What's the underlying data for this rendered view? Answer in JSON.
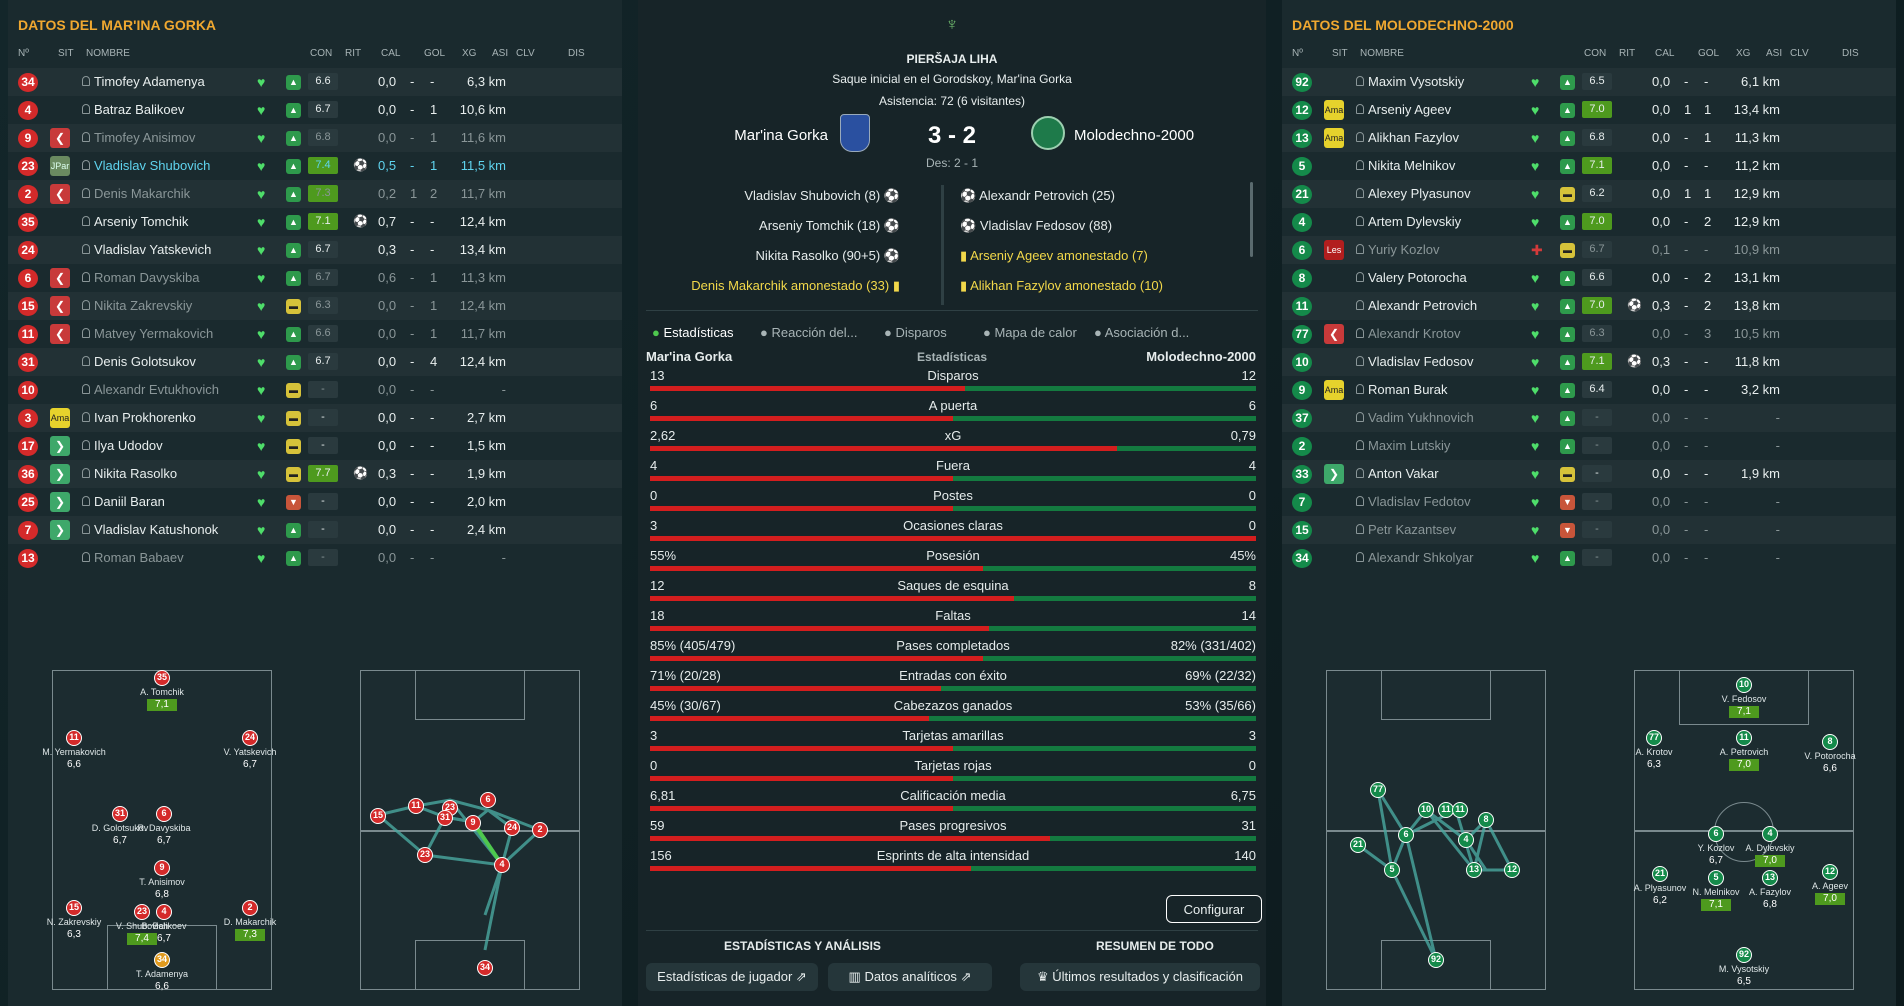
{
  "left": {
    "title": "DATOS DEL MAR'INA GORKA",
    "headers": {
      "num": "Nº",
      "sit": "SIT",
      "name": "NOMBRE",
      "con": "CON",
      "rit": "RIT",
      "cal": "CAL",
      "gol": "GOL",
      "xg": "XG",
      "asi": "ASI",
      "clv": "CLV",
      "dis": "DIS"
    },
    "players": [
      {
        "n": "34",
        "sit": "",
        "name": "Timofey Adamenya",
        "con": "♥",
        "rit": "g",
        "cal": "6.6",
        "gol": "",
        "xg": "0,0",
        "asi": "-",
        "clv": "-",
        "dis": "6,3 km"
      },
      {
        "n": "4",
        "sit": "",
        "name": "Batraz Balikoev",
        "con": "♥",
        "rit": "g",
        "cal": "6.7",
        "gol": "",
        "xg": "0,0",
        "asi": "-",
        "clv": "1",
        "dis": "10,6 km"
      },
      {
        "n": "9",
        "sit": "out",
        "name": "Timofey Anisimov",
        "con": "♥",
        "rit": "g",
        "cal": "6.8",
        "gol": "",
        "xg": "0,0",
        "asi": "-",
        "clv": "1",
        "dis": "11,6 km",
        "dim": true
      },
      {
        "n": "23",
        "sit": "jpar",
        "sitl": "JPar",
        "name": "Vladislav Shubovich",
        "con": "♥",
        "rit": "g",
        "cal": "7.4",
        "hi": true,
        "gol": "⚽",
        "xg": "0,5",
        "asi": "-",
        "clv": "1",
        "dis": "11,5 km",
        "hl": true
      },
      {
        "n": "2",
        "sit": "out",
        "name": "Denis Makarchik",
        "con": "♥",
        "rit": "g",
        "cal": "7.3",
        "hi": true,
        "gol": "",
        "xg": "0,2",
        "asi": "1",
        "clv": "2",
        "dis": "11,7 km",
        "dim": true
      },
      {
        "n": "35",
        "sit": "",
        "name": "Arseniy Tomchik",
        "con": "♥",
        "rit": "g",
        "cal": "7.1",
        "hi": true,
        "gol": "⚽",
        "xg": "0,7",
        "asi": "-",
        "clv": "-",
        "dis": "12,4 km"
      },
      {
        "n": "24",
        "sit": "",
        "name": "Vladislav Yatskevich",
        "con": "♥",
        "rit": "g",
        "cal": "6.7",
        "gol": "",
        "xg": "0,3",
        "asi": "-",
        "clv": "-",
        "dis": "13,4 km"
      },
      {
        "n": "6",
        "sit": "out",
        "name": "Roman Davyskiba",
        "con": "♥",
        "rit": "g",
        "cal": "6.7",
        "gol": "",
        "xg": "0,6",
        "asi": "-",
        "clv": "1",
        "dis": "11,3 km",
        "dim": true
      },
      {
        "n": "15",
        "sit": "out",
        "name": "Nikita Zakrevskiy",
        "con": "♥",
        "rit": "y",
        "cal": "6.3",
        "gol": "",
        "xg": "0,0",
        "asi": "-",
        "clv": "1",
        "dis": "12,4 km",
        "dim": true
      },
      {
        "n": "11",
        "sit": "out",
        "name": "Matvey Yermakovich",
        "con": "♥",
        "rit": "g",
        "cal": "6.6",
        "gol": "",
        "xg": "0,0",
        "asi": "-",
        "clv": "1",
        "dis": "11,7 km",
        "dim": true
      },
      {
        "n": "31",
        "sit": "",
        "name": "Denis Golotsukov",
        "con": "♥",
        "rit": "g",
        "cal": "6.7",
        "gol": "",
        "xg": "0,0",
        "asi": "-",
        "clv": "4",
        "dis": "12,4 km"
      },
      {
        "n": "10",
        "sit": "",
        "name": "Alexandr Evtukhovich",
        "con": "♥",
        "rit": "y",
        "cal": "-",
        "gol": "",
        "xg": "0,0",
        "asi": "-",
        "clv": "-",
        "dis": "-",
        "dim": true
      },
      {
        "n": "3",
        "sit": "ama",
        "sitl": "Ama",
        "name": "Ivan Prokhorenko",
        "con": "♥",
        "rit": "y",
        "cal": "-",
        "gol": "",
        "xg": "0,0",
        "asi": "-",
        "clv": "-",
        "dis": "2,7 km"
      },
      {
        "n": "17",
        "sit": "in",
        "name": "Ilya Udodov",
        "con": "♥",
        "rit": "y",
        "cal": "-",
        "gol": "",
        "xg": "0,0",
        "asi": "-",
        "clv": "-",
        "dis": "1,5 km"
      },
      {
        "n": "36",
        "sit": "in",
        "name": "Nikita Rasolko",
        "con": "♥",
        "rit": "y",
        "cal": "7.7",
        "hi": true,
        "gol": "⚽",
        "xg": "0,3",
        "asi": "-",
        "clv": "-",
        "dis": "1,9 km"
      },
      {
        "n": "25",
        "sit": "in",
        "name": "Daniil Baran",
        "con": "♥",
        "rit": "r",
        "cal": "-",
        "gol": "",
        "xg": "0,0",
        "asi": "-",
        "clv": "-",
        "dis": "2,0 km"
      },
      {
        "n": "7",
        "sit": "in",
        "name": "Vladislav Katushonok",
        "con": "♥",
        "rit": "g",
        "cal": "-",
        "gol": "",
        "xg": "0,0",
        "asi": "-",
        "clv": "-",
        "dis": "2,4 km"
      },
      {
        "n": "13",
        "sit": "",
        "name": "Roman Babaev",
        "con": "♥",
        "rit": "g",
        "cal": "-",
        "gol": "",
        "xg": "0,0",
        "asi": "-",
        "clv": "-",
        "dis": "-",
        "dim": true
      }
    ],
    "formation": [
      {
        "n": "35",
        "name": "A. Tomchik",
        "rat": "7,1",
        "hi": true
      },
      {
        "n": "11",
        "name": "M. Yermakovich",
        "rat": "6,6"
      },
      {
        "n": "24",
        "name": "V. Yatskevich",
        "rat": "6,7"
      },
      {
        "n": "31",
        "name": "D. Golotsukov",
        "rat": "6,7"
      },
      {
        "n": "6",
        "name": "R. Davyskiba",
        "rat": "6,7"
      },
      {
        "n": "9",
        "name": "T. Anisimov",
        "rat": "6,8"
      },
      {
        "n": "15",
        "name": "N. Zakrevskiy",
        "rat": "6,3"
      },
      {
        "n": "23",
        "name": "V. Shubovich",
        "rat": "7,4",
        "hi": true
      },
      {
        "n": "4",
        "name": "B. Balikoev",
        "rat": "6,7"
      },
      {
        "n": "2",
        "name": "D. Makarchik",
        "rat": "7,3",
        "hi": true
      },
      {
        "n": "34",
        "name": "T. Adamenya",
        "rat": "6,6"
      }
    ]
  },
  "center": {
    "league": "PIERŠAJA LIHA",
    "kickoff": "Saque inicial en el Gorodskoy, Mar'ina Gorka",
    "attendance": "Asistencia: 72 (6 visitantes)",
    "home": "Mar'ina Gorka",
    "away": "Molodechno-2000",
    "score": "3 - 2",
    "halftime": "Des: 2 - 1",
    "events_home": [
      "Vladislav Shubovich (8)",
      "Arseniy Tomchik (18)",
      "Nikita Rasolko (90+5)",
      "Denis Makarchik amonestado (33)"
    ],
    "events_away": [
      "Alexandr Petrovich (25)",
      "Vladislav Fedosov (88)",
      "Arseniy Ageev amonestado (7)",
      "Alikhan Fazylov amonestado (10)"
    ],
    "tabs": [
      "Estadísticas",
      "Reacción del...",
      "Disparos",
      "Mapa de calor",
      "Asociación d..."
    ],
    "stats_header": {
      "home": "Mar'ina Gorka",
      "mid": "Estadísticas",
      "away": "Molodechno-2000"
    },
    "stats": [
      {
        "label": "Disparos",
        "l": "13",
        "r": "12",
        "p": 0.52
      },
      {
        "label": "A puerta",
        "l": "6",
        "r": "6",
        "p": 0.5
      },
      {
        "label": "xG",
        "l": "2,62",
        "r": "0,79",
        "p": 0.77
      },
      {
        "label": "Fuera",
        "l": "4",
        "r": "4",
        "p": 0.5
      },
      {
        "label": "Postes",
        "l": "0",
        "r": "0",
        "p": 0.5
      },
      {
        "label": "Ocasiones claras",
        "l": "3",
        "r": "0",
        "p": 1.0
      },
      {
        "label": "Posesión",
        "l": "55%",
        "r": "45%",
        "p": 0.55
      },
      {
        "label": "Saques de esquina",
        "l": "12",
        "r": "8",
        "p": 0.6
      },
      {
        "label": "Faltas",
        "l": "18",
        "r": "14",
        "p": 0.56
      },
      {
        "label": "Pases completados",
        "l": "85% (405/479)",
        "r": "82% (331/402)",
        "p": 0.55
      },
      {
        "label": "Entradas con éxito",
        "l": "71% (20/28)",
        "r": "69% (22/32)",
        "p": 0.48
      },
      {
        "label": "Cabezazos ganados",
        "l": "45% (30/67)",
        "r": "53% (35/66)",
        "p": 0.46
      },
      {
        "label": "Tarjetas amarillas",
        "l": "3",
        "r": "3",
        "p": 0.5
      },
      {
        "label": "Tarjetas rojas",
        "l": "0",
        "r": "0",
        "p": 0.5
      },
      {
        "label": "Calificación media",
        "l": "6,81",
        "r": "6,75",
        "p": 0.5
      },
      {
        "label": "Pases progresivos",
        "l": "59",
        "r": "31",
        "p": 0.66
      },
      {
        "label": "Esprints de alta intensidad",
        "l": "156",
        "r": "140",
        "p": 0.53
      }
    ],
    "configure": "Configurar",
    "section1": "ESTADÍSTICAS Y ANÁLISIS",
    "section2": "RESUMEN DE TODO",
    "btn_player": "Estadísticas de jugador",
    "btn_analytics": "Datos analíticos",
    "btn_results": "Últimos resultados y clasificación"
  },
  "right": {
    "title": "DATOS DEL MOLODECHNO-2000",
    "players": [
      {
        "n": "92",
        "sit": "",
        "name": "Maxim Vysotskiy",
        "con": "♥",
        "rit": "g",
        "cal": "6.5",
        "gol": "",
        "xg": "0,0",
        "asi": "-",
        "clv": "-",
        "dis": "6,1 km"
      },
      {
        "n": "12",
        "sit": "ama",
        "sitl": "Ama",
        "name": "Arseniy Ageev",
        "con": "♥",
        "rit": "g",
        "cal": "7.0",
        "hi": true,
        "gol": "",
        "xg": "0,0",
        "asi": "1",
        "clv": "1",
        "dis": "13,4 km"
      },
      {
        "n": "13",
        "sit": "ama",
        "sitl": "Ama",
        "name": "Alikhan Fazylov",
        "con": "♥",
        "rit": "g",
        "cal": "6.8",
        "gol": "",
        "xg": "0,0",
        "asi": "-",
        "clv": "1",
        "dis": "11,3 km"
      },
      {
        "n": "5",
        "sit": "",
        "name": "Nikita Melnikov",
        "con": "♥",
        "rit": "g",
        "cal": "7.1",
        "hi": true,
        "gol": "",
        "xg": "0,0",
        "asi": "-",
        "clv": "-",
        "dis": "11,2 km"
      },
      {
        "n": "21",
        "sit": "",
        "name": "Alexey Plyasunov",
        "con": "♥",
        "rit": "y",
        "cal": "6.2",
        "gol": "",
        "xg": "0,0",
        "asi": "1",
        "clv": "1",
        "dis": "12,9 km"
      },
      {
        "n": "4",
        "sit": "",
        "name": "Artem Dylevskiy",
        "con": "♥",
        "rit": "g",
        "cal": "7.0",
        "hi": true,
        "gol": "",
        "xg": "0,0",
        "asi": "-",
        "clv": "2",
        "dis": "12,9 km"
      },
      {
        "n": "6",
        "sit": "les",
        "sitl": "Les",
        "name": "Yuriy Kozlov",
        "con": "✚",
        "rit": "y",
        "cal": "6.7",
        "gol": "",
        "xg": "0,1",
        "asi": "-",
        "clv": "-",
        "dis": "10,9 km",
        "dim": true
      },
      {
        "n": "8",
        "sit": "",
        "name": "Valery Potorocha",
        "con": "♥",
        "rit": "g",
        "cal": "6.6",
        "gol": "",
        "xg": "0,0",
        "asi": "-",
        "clv": "2",
        "dis": "13,1 km"
      },
      {
        "n": "11",
        "sit": "",
        "name": "Alexandr Petrovich",
        "con": "♥",
        "rit": "g",
        "cal": "7.0",
        "hi": true,
        "gol": "⚽",
        "xg": "0,3",
        "asi": "-",
        "clv": "2",
        "dis": "13,8 km"
      },
      {
        "n": "77",
        "sit": "out",
        "name": "Alexandr Krotov",
        "con": "♥",
        "rit": "g",
        "cal": "6.3",
        "gol": "",
        "xg": "0,0",
        "asi": "-",
        "clv": "3",
        "dis": "10,5 km",
        "dim": true
      },
      {
        "n": "10",
        "sit": "",
        "name": "Vladislav Fedosov",
        "con": "♥",
        "rit": "g",
        "cal": "7.1",
        "hi": true,
        "gol": "⚽",
        "xg": "0,3",
        "asi": "-",
        "clv": "-",
        "dis": "11,8 km"
      },
      {
        "n": "9",
        "sit": "ama",
        "sitl": "Ama",
        "name": "Roman Burak",
        "con": "♥",
        "rit": "g",
        "cal": "6.4",
        "gol": "",
        "xg": "0,0",
        "asi": "-",
        "clv": "-",
        "dis": "3,2 km"
      },
      {
        "n": "37",
        "sit": "",
        "name": "Vadim Yukhnovich",
        "con": "♥",
        "rit": "g",
        "cal": "-",
        "gol": "",
        "xg": "0,0",
        "asi": "-",
        "clv": "-",
        "dis": "-",
        "dim": true
      },
      {
        "n": "2",
        "sit": "",
        "name": "Maxim Lutskiy",
        "con": "♥",
        "rit": "g",
        "cal": "-",
        "gol": "",
        "xg": "0,0",
        "asi": "-",
        "clv": "-",
        "dis": "-",
        "dim": true
      },
      {
        "n": "33",
        "sit": "in",
        "name": "Anton Vakar",
        "con": "♥",
        "rit": "y",
        "cal": "-",
        "gol": "",
        "xg": "0,0",
        "asi": "-",
        "clv": "-",
        "dis": "1,9 km"
      },
      {
        "n": "7",
        "sit": "",
        "name": "Vladislav Fedotov",
        "con": "♥",
        "rit": "r",
        "cal": "-",
        "gol": "",
        "xg": "0,0",
        "asi": "-",
        "clv": "-",
        "dis": "-",
        "dim": true
      },
      {
        "n": "15",
        "sit": "",
        "name": "Petr Kazantsev",
        "con": "♥",
        "rit": "r",
        "cal": "-",
        "gol": "",
        "xg": "0,0",
        "asi": "-",
        "clv": "-",
        "dis": "-",
        "dim": true
      },
      {
        "n": "34",
        "sit": "",
        "name": "Alexandr Shkolyar",
        "con": "♥",
        "rit": "g",
        "cal": "-",
        "gol": "",
        "xg": "0,0",
        "asi": "-",
        "clv": "-",
        "dis": "-",
        "dim": true
      }
    ],
    "formation": [
      {
        "n": "10",
        "name": "V. Fedosov",
        "rat": "7,1",
        "hi": true
      },
      {
        "n": "77",
        "name": "A. Krotov",
        "rat": "6,3"
      },
      {
        "n": "11",
        "name": "A. Petrovich",
        "rat": "7,0",
        "hi": true
      },
      {
        "n": "8",
        "name": "V. Potorocha",
        "rat": "6,6"
      },
      {
        "n": "6",
        "name": "Y. Kozlov",
        "rat": "6,7"
      },
      {
        "n": "4",
        "name": "A. Dylevskiy",
        "rat": "7,0",
        "hi": true
      },
      {
        "n": "21",
        "name": "A. Plyasunov",
        "rat": "6,2"
      },
      {
        "n": "5",
        "name": "N. Melnikov",
        "rat": "7,1",
        "hi": true
      },
      {
        "n": "13",
        "name": "A. Fazylov",
        "rat": "6,8"
      },
      {
        "n": "12",
        "name": "A. Ageev",
        "rat": "7,0",
        "hi": true
      },
      {
        "n": "92",
        "name": "M. Vysotskiy",
        "rat": "6,5"
      }
    ]
  }
}
